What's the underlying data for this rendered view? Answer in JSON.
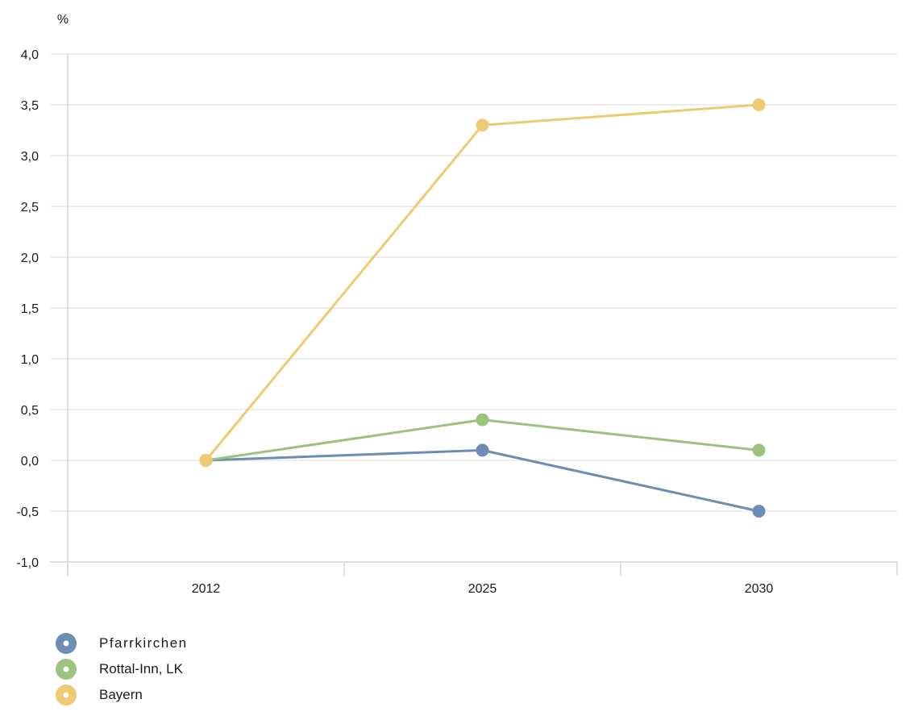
{
  "chart_data": {
    "type": "line",
    "y_unit": "%",
    "categories": [
      "2012",
      "2025",
      "2030"
    ],
    "ylim": [
      -1.0,
      4.0
    ],
    "yticks": [
      -1.0,
      -0.5,
      0.0,
      0.5,
      1.0,
      1.5,
      2.0,
      2.5,
      3.0,
      3.5,
      4.0
    ],
    "ytick_labels": [
      "-1,0",
      "-0,5",
      "0,0",
      "0,5",
      "1,0",
      "1,5",
      "2,0",
      "2,5",
      "3,0",
      "3,5",
      "4,0"
    ],
    "grid": true,
    "legend_position": "bottom-left",
    "series": [
      {
        "name": "Pfarrkirchen",
        "values": [
          0.0,
          0.1,
          -0.5
        ],
        "color": "#6e8db4"
      },
      {
        "name": "Rottal-Inn, LK",
        "values": [
          0.0,
          0.4,
          0.1
        ],
        "color": "#9cc27d"
      },
      {
        "name": "Bayern",
        "values": [
          0.0,
          3.3,
          3.5
        ],
        "color": "#eecb72"
      }
    ]
  }
}
